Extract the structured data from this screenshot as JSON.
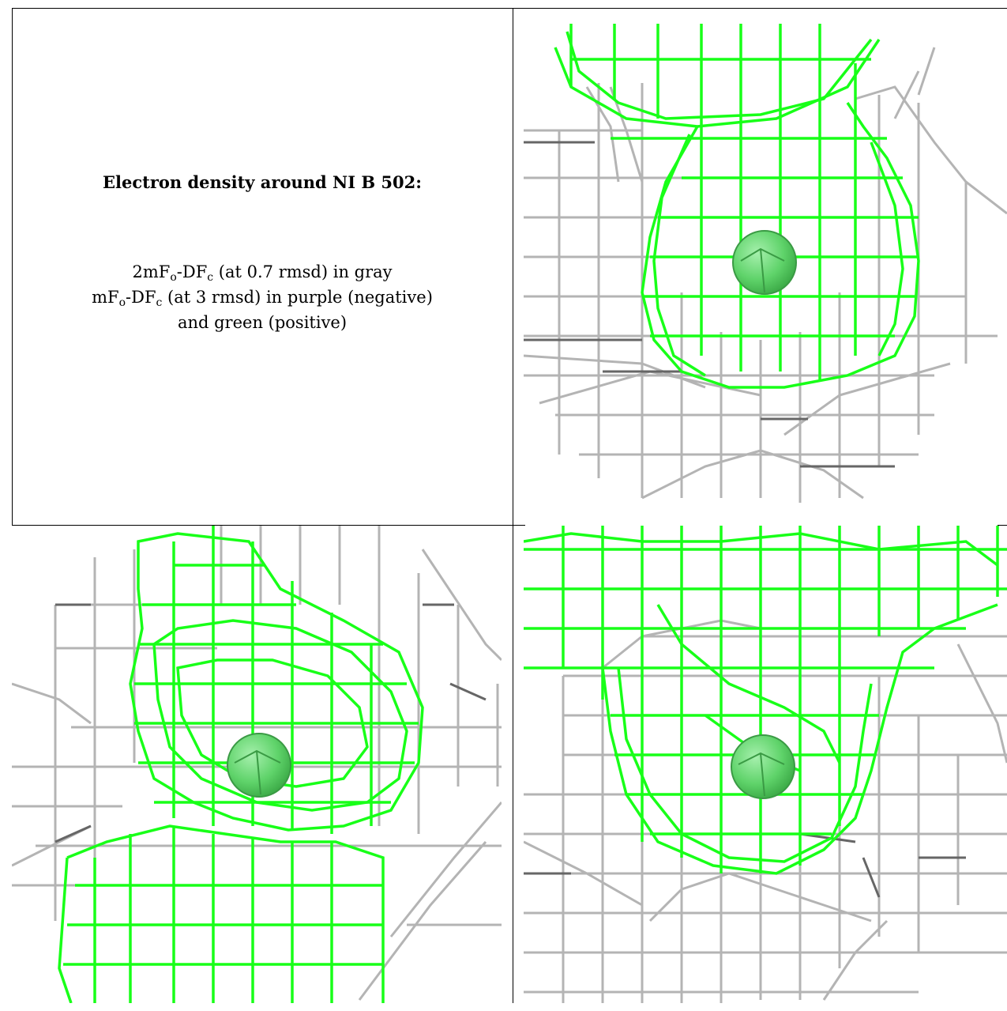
{
  "legend": {
    "title": "Electron density around NI B 502:",
    "line1": {
      "a": "2mF",
      "a_sub": "o",
      "b": "-DF",
      "b_sub": "c",
      "rest": " (at 0.7 rmsd) in gray"
    },
    "line2": {
      "a": "mF",
      "a_sub": "o",
      "b": "-DF",
      "b_sub": "c",
      "rest": " (at 3 rmsd) in purple (negative)"
    },
    "line3": "and green (positive)"
  },
  "colors": {
    "positive_mesh": "#18ff18",
    "gray_mesh": "#a8a8a8",
    "dark_mesh": "#555555",
    "atom": "#5fd36a"
  },
  "panels": [
    {
      "name": "view-top-right",
      "atom": "Ni"
    },
    {
      "name": "view-bottom-left",
      "atom": "Ni"
    },
    {
      "name": "view-bottom-right",
      "atom": "Ni"
    }
  ]
}
